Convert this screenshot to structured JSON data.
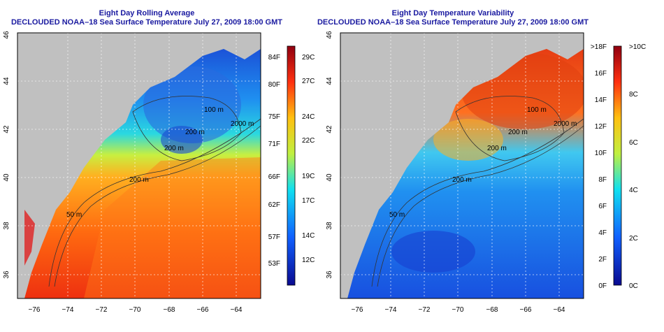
{
  "left": {
    "title": "Eight Day Rolling Average",
    "subtitle": "DECLOUDED NOAA–18 Sea Surface Temperature July 27, 2009 18:00 GMT",
    "x_ticks": [
      "−76",
      "−74",
      "−72",
      "−70",
      "−68",
      "−66",
      "−64"
    ],
    "y_ticks": [
      "36",
      "38",
      "40",
      "42",
      "44",
      "46"
    ],
    "colorbar_f": [
      "53F",
      "57F",
      "62F",
      "66F",
      "71F",
      "75F",
      "80F",
      "84F"
    ],
    "colorbar_c": [
      "12C",
      "14C",
      "17C",
      "19C",
      "22C",
      "24C",
      "27C",
      "29C"
    ],
    "contour_labels": [
      "100 m",
      "200 m",
      "200 m",
      "2000 m",
      "200 m",
      "50 m"
    ]
  },
  "right": {
    "title": "Eight Day Temperature Variability",
    "subtitle": "DECLOUDED NOAA–18 Sea Surface Temperature July 27, 2009 18:00 GMT",
    "x_ticks": [
      "−76",
      "−74",
      "−72",
      "−70",
      "−68",
      "−66",
      "−64"
    ],
    "y_ticks": [
      "36",
      "38",
      "40",
      "42",
      "44",
      "46"
    ],
    "colorbar_f": [
      "0F",
      "2F",
      "4F",
      "6F",
      "8F",
      "10F",
      "12F",
      "14F",
      "16F",
      ">18F"
    ],
    "colorbar_c": [
      "0C",
      "2C",
      "4C",
      "6C",
      "8C",
      ">10C"
    ],
    "contour_labels": [
      "100 m",
      "200 m",
      "200 m",
      "2000 m",
      "200 m",
      "50 m"
    ]
  },
  "colors": {
    "land": "#c0c0c0",
    "title": "#1a1aa0"
  }
}
